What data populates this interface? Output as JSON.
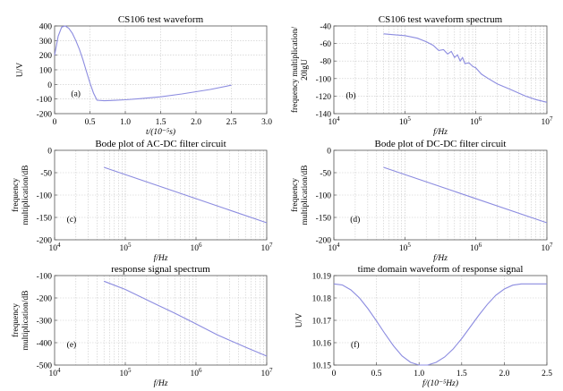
{
  "figure": {
    "line_color": "#8c8ce0"
  },
  "chart_data": [
    {
      "id": "a",
      "type": "line",
      "title": "CS106 test waveform",
      "xlabel": "t/(10⁻⁵s)",
      "ylabel": "U/V",
      "panel_label": "(a)",
      "xscale": "linear",
      "xlim": [
        0,
        3
      ],
      "ylim": [
        -200,
        400
      ],
      "xticks": [
        0,
        0.5,
        1,
        1.5,
        2,
        2.5,
        3
      ],
      "xtick_labels": [
        "0",
        "0.5",
        "1.0",
        "1.5",
        "2.0",
        "2.5",
        "3.0"
      ],
      "yticks": [
        -200,
        -100,
        0,
        100,
        200,
        300,
        400
      ],
      "ytick_labels": [
        "-200",
        "-100",
        "0",
        "100",
        "200",
        "300",
        "400"
      ],
      "grid": true,
      "x": [
        0,
        0.05,
        0.1,
        0.15,
        0.2,
        0.25,
        0.3,
        0.35,
        0.4,
        0.45,
        0.5,
        0.55,
        0.6,
        0.7,
        0.8,
        1.0,
        1.2,
        1.5,
        1.8,
        2.0,
        2.2,
        2.5
      ],
      "y": [
        200,
        330,
        392,
        400,
        385,
        350,
        300,
        240,
        170,
        90,
        10,
        -60,
        -108,
        -112,
        -110,
        -105,
        -98,
        -85,
        -65,
        -50,
        -35,
        -5
      ]
    },
    {
      "id": "b",
      "type": "line",
      "title": "CS106 test waveform spectrum",
      "xlabel": "f/Hz",
      "ylabel": "frequency multiplication/ 20lgU",
      "panel_label": "(b)",
      "xscale": "log",
      "xlim": [
        10000,
        10000000
      ],
      "ylim": [
        -140,
        -40
      ],
      "xticks": [
        10000,
        100000,
        1000000,
        10000000
      ],
      "xtick_labels": [
        "10⁴",
        "10⁵",
        "10⁶",
        "10⁷"
      ],
      "yticks": [
        -140,
        -120,
        -100,
        -80,
        -60,
        -40
      ],
      "ytick_labels": [
        "-140",
        "-120",
        "-100",
        "-80",
        "-60",
        "-40"
      ],
      "grid": true,
      "x": [
        50000,
        70000,
        100000,
        150000,
        200000,
        250000,
        300000,
        350000,
        400000,
        450000,
        500000,
        550000,
        600000,
        650000,
        700000,
        800000,
        900000,
        1000000,
        1200000,
        1500000,
        2000000,
        3000000,
        5000000,
        7000000,
        10000000
      ],
      "y": [
        -49,
        -50,
        -51,
        -54,
        -58,
        -62,
        -68,
        -67,
        -72,
        -69,
        -76,
        -73,
        -80,
        -76,
        -83,
        -82,
        -86,
        -88,
        -95,
        -100,
        -106,
        -112,
        -120,
        -124,
        -127
      ]
    },
    {
      "id": "c",
      "type": "line",
      "title": "Bode plot of AC-DC filter circuit",
      "xlabel": "f/Hz",
      "ylabel": "frequency multiplication/dB",
      "panel_label": "(c)",
      "xscale": "log",
      "xlim": [
        10000,
        10000000
      ],
      "ylim": [
        -200,
        0
      ],
      "xticks": [
        10000,
        100000,
        1000000,
        10000000
      ],
      "xtick_labels": [
        "10⁴",
        "10⁵",
        "10⁶",
        "10⁷"
      ],
      "yticks": [
        -200,
        -150,
        -100,
        -50,
        0
      ],
      "ytick_labels": [
        "-200",
        "-150",
        "-100",
        "-50",
        "0"
      ],
      "grid": true,
      "x": [
        50000,
        10000000
      ],
      "y": [
        -38,
        -162
      ]
    },
    {
      "id": "d",
      "type": "line",
      "title": "Bode plot of DC-DC filter circuit",
      "xlabel": "f/Hz",
      "ylabel": "frequency multiplication/dB",
      "panel_label": "(d)",
      "xscale": "log",
      "xlim": [
        10000,
        10000000
      ],
      "ylim": [
        -200,
        0
      ],
      "xticks": [
        10000,
        100000,
        1000000,
        10000000
      ],
      "xtick_labels": [
        "10⁴",
        "10⁵",
        "10⁶",
        "10⁷"
      ],
      "yticks": [
        -200,
        -150,
        -100,
        -50,
        0
      ],
      "ytick_labels": [
        "-200",
        "-150",
        "-100",
        "-50",
        "0"
      ],
      "grid": true,
      "x": [
        50000,
        10000000
      ],
      "y": [
        -38,
        -162
      ]
    },
    {
      "id": "e",
      "type": "line",
      "title": "response signal spectrum",
      "xlabel": "f/Hz",
      "ylabel": "frequency multiplication/dB",
      "panel_label": "(e)",
      "xscale": "log",
      "xlim": [
        10000,
        10000000
      ],
      "ylim": [
        -500,
        -100
      ],
      "xticks": [
        10000,
        100000,
        1000000,
        10000000
      ],
      "xtick_labels": [
        "10⁴",
        "10⁵",
        "10⁶",
        "10⁷"
      ],
      "yticks": [
        -500,
        -400,
        -300,
        -200,
        -100
      ],
      "ytick_labels": [
        "-500",
        "-400",
        "-300",
        "-200",
        "-100"
      ],
      "grid": true,
      "x": [
        50000,
        100000,
        200000,
        300000,
        500000,
        1000000,
        2000000,
        5000000,
        10000000
      ],
      "y": [
        -125,
        -162,
        -208,
        -235,
        -268,
        -316,
        -365,
        -420,
        -460
      ]
    },
    {
      "id": "f",
      "type": "line",
      "title": "time domain waveform of response signal",
      "xlabel": "f/(10⁻⁵Hz)",
      "ylabel": "U/V",
      "panel_label": "(f)",
      "xscale": "linear",
      "xlim": [
        0,
        2.5
      ],
      "ylim": [
        10.15,
        10.19
      ],
      "xticks": [
        0,
        0.5,
        1,
        1.5,
        2,
        2.5
      ],
      "xtick_labels": [
        "0",
        "0.5",
        "1.0",
        "1.5",
        "2.0",
        "2.5"
      ],
      "yticks": [
        10.15,
        10.16,
        10.17,
        10.18,
        10.19
      ],
      "ytick_labels": [
        "10.15",
        "10.16",
        "10.17",
        "10.18",
        "10.19"
      ],
      "grid": true,
      "x": [
        0,
        0.1,
        0.2,
        0.3,
        0.4,
        0.5,
        0.6,
        0.7,
        0.8,
        0.9,
        1.0,
        1.1,
        1.2,
        1.3,
        1.4,
        1.5,
        1.6,
        1.7,
        1.8,
        1.9,
        2.0,
        2.1,
        2.2,
        2.3,
        2.4,
        2.5
      ],
      "y": [
        10.1863,
        10.1858,
        10.1836,
        10.18,
        10.1752,
        10.1697,
        10.164,
        10.1586,
        10.1541,
        10.1512,
        10.15,
        10.15,
        10.1512,
        10.1536,
        10.1572,
        10.1618,
        10.167,
        10.1722,
        10.1771,
        10.1812,
        10.184,
        10.1857,
        10.1863,
        10.1863,
        10.1863,
        10.1863
      ]
    }
  ]
}
